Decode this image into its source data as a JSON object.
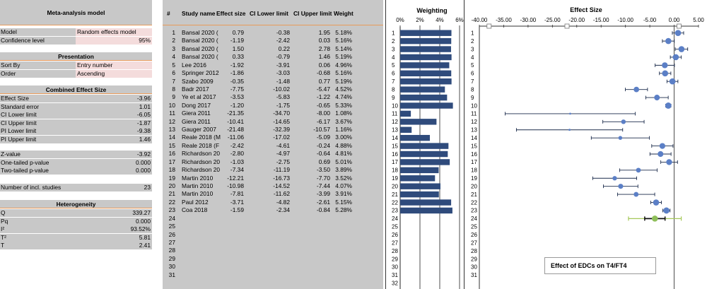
{
  "left_panel": {
    "header": "Meta-analysis model",
    "model": {
      "label": "Model",
      "value": "Random effects model"
    },
    "confidence": {
      "label": "Confidence level",
      "value": "95%"
    },
    "presentation_header": "Presentation",
    "sort_by": {
      "label": "Sort By",
      "value": "Entry number"
    },
    "order": {
      "label": "Order",
      "value": "Ascending"
    },
    "combined_header": "Combined Effect Size",
    "combined": [
      {
        "label": "Effect Size",
        "value": "-3.96"
      },
      {
        "label": "Standard error",
        "value": "1.01"
      },
      {
        "label": "CI Lower limit",
        "value": "-6.05"
      },
      {
        "label": "CI Upper limit",
        "value": "-1.87"
      },
      {
        "label": "PI Lower limit",
        "value": "-9.38"
      },
      {
        "label": "PI Upper limit",
        "value": "1.46"
      }
    ],
    "tests": [
      {
        "label": "Z-value",
        "value": "-3.92"
      },
      {
        "label": "One-tailed p-value",
        "value": "0.000"
      },
      {
        "label": "Two-tailed p-value",
        "value": "0.000"
      }
    ],
    "n_studies": {
      "label": "Number of incl. studies",
      "value": "23"
    },
    "heterogeneity_header": "Heterogeneity",
    "heterogeneity": [
      {
        "label": "Q",
        "value": "339.27"
      },
      {
        "label": "Pq",
        "value": "0.000"
      },
      {
        "label": "I²",
        "value": "93.52%"
      },
      {
        "label": "T²",
        "value": "5.81"
      },
      {
        "label": "T",
        "value": "2.41"
      }
    ]
  },
  "table": {
    "headers": [
      "#",
      "Study name",
      "Effect size",
      "CI Lower limit",
      "CI Upper limit",
      "Weight"
    ],
    "rows": [
      {
        "n": "1",
        "name": "Bansal 2020 (",
        "es": "0.79",
        "lo": "-0.38",
        "hi": "1.95",
        "w": "5.18%"
      },
      {
        "n": "2",
        "name": "Bansal 2020 (",
        "es": "-1.19",
        "lo": "-2.42",
        "hi": "0.03",
        "w": "5.16%"
      },
      {
        "n": "3",
        "name": "Bansal 2020 (",
        "es": "1.50",
        "lo": "0.22",
        "hi": "2.78",
        "w": "5.14%"
      },
      {
        "n": "4",
        "name": "Bansal 2020 (",
        "es": "0.33",
        "lo": "-0.79",
        "hi": "1.46",
        "w": "5.19%"
      },
      {
        "n": "5",
        "name": "Lee 2016",
        "es": "-1.92",
        "lo": "-3.91",
        "hi": "0.06",
        "w": "4.96%"
      },
      {
        "n": "6",
        "name": "Springer 2012",
        "es": "-1.86",
        "lo": "-3.03",
        "hi": "-0.68",
        "w": "5.16%"
      },
      {
        "n": "7",
        "name": "Szabo 2009",
        "es": "-0.35",
        "lo": "-1.48",
        "hi": "0.77",
        "w": "5.19%"
      },
      {
        "n": "8",
        "name": "Badr 2017",
        "es": "-7.75",
        "lo": "-10.02",
        "hi": "-5.47",
        "w": "4.52%"
      },
      {
        "n": "9",
        "name": "Ye et al 2017",
        "es": "-3.53",
        "lo": "-5.83",
        "hi": "-1.22",
        "w": "4.74%"
      },
      {
        "n": "10",
        "name": "Dong 2017",
        "es": "-1.20",
        "lo": "-1.75",
        "hi": "-0.65",
        "w": "5.33%"
      },
      {
        "n": "11",
        "name": "Giera 2011",
        "es": "-21.35",
        "lo": "-34.70",
        "hi": "-8.00",
        "w": "1.08%"
      },
      {
        "n": "12",
        "name": "Giera 2011",
        "es": "-10.41",
        "lo": "-14.65",
        "hi": "-6.17",
        "w": "3.67%"
      },
      {
        "n": "13",
        "name": "Gauger 2007",
        "es": "-21.48",
        "lo": "-32.39",
        "hi": "-10.57",
        "w": "1.16%"
      },
      {
        "n": "14",
        "name": "Reale 2018 (M",
        "es": "-11.06",
        "lo": "-17.02",
        "hi": "-5.09",
        "w": "3.00%"
      },
      {
        "n": "15",
        "name": "Reale 2018 (F",
        "es": "-2.42",
        "lo": "-4.61",
        "hi": "-0.24",
        "w": "4.88%"
      },
      {
        "n": "16",
        "name": "Richardson 20",
        "es": "-2.80",
        "lo": "-4.97",
        "hi": "-0.64",
        "w": "4.81%"
      },
      {
        "n": "17",
        "name": "Richardson 20",
        "es": "-1.03",
        "lo": "-2.75",
        "hi": "0.69",
        "w": "5.01%"
      },
      {
        "n": "18",
        "name": "Richardson 20",
        "es": "-7.34",
        "lo": "-11.19",
        "hi": "-3.50",
        "w": "3.89%"
      },
      {
        "n": "19",
        "name": "Martin 2010",
        "es": "-12.21",
        "lo": "-16.73",
        "hi": "-7.70",
        "w": "3.52%"
      },
      {
        "n": "20",
        "name": "Martin 2010",
        "es": "-10.98",
        "lo": "-14.52",
        "hi": "-7.44",
        "w": "4.07%"
      },
      {
        "n": "21",
        "name": "Martin 2010",
        "es": "-7.81",
        "lo": "-11.62",
        "hi": "-3.99",
        "w": "3.91%"
      },
      {
        "n": "22",
        "name": "Paul 2012",
        "es": "-3.71",
        "lo": "-4.82",
        "hi": "-2.61",
        "w": "5.15%"
      },
      {
        "n": "23",
        "name": "Coa 2018",
        "es": "-1.59",
        "lo": "-2.34",
        "hi": "-0.84",
        "w": "5.28%"
      },
      {
        "n": "24",
        "name": "",
        "es": "",
        "lo": "",
        "hi": "",
        "w": ""
      },
      {
        "n": "25",
        "name": "",
        "es": "",
        "lo": "",
        "hi": "",
        "w": ""
      },
      {
        "n": "26",
        "name": "",
        "es": "",
        "lo": "",
        "hi": "",
        "w": ""
      },
      {
        "n": "27",
        "name": "",
        "es": "",
        "lo": "",
        "hi": "",
        "w": ""
      },
      {
        "n": "28",
        "name": "",
        "es": "",
        "lo": "",
        "hi": "",
        "w": ""
      },
      {
        "n": "29",
        "name": "",
        "es": "",
        "lo": "",
        "hi": "",
        "w": ""
      },
      {
        "n": "30",
        "name": "",
        "es": "",
        "lo": "",
        "hi": "",
        "w": ""
      },
      {
        "n": "31",
        "name": "",
        "es": "",
        "lo": "",
        "hi": "",
        "w": ""
      }
    ]
  },
  "chart_data": [
    {
      "type": "bar",
      "title": "Weighting",
      "orientation": "horizontal",
      "xlim": [
        0,
        6
      ],
      "x_ticks": [
        "0%",
        "2%",
        "4%",
        "6%"
      ],
      "row_labels": [
        "1",
        "2",
        "3",
        "4",
        "5",
        "6",
        "7",
        "8",
        "9",
        "10",
        "11",
        "12",
        "13",
        "14",
        "15",
        "16",
        "17",
        "18",
        "19",
        "20",
        "21",
        "22",
        "23",
        "24",
        "25",
        "26",
        "27",
        "28",
        "29",
        "30",
        "31",
        "32"
      ],
      "values": [
        5.18,
        5.16,
        5.14,
        5.19,
        4.96,
        5.16,
        5.19,
        4.52,
        4.74,
        5.33,
        1.08,
        3.67,
        1.16,
        3.0,
        4.88,
        4.81,
        5.01,
        3.89,
        3.52,
        4.07,
        3.91,
        5.15,
        5.28
      ],
      "bar_color": "#2f4b7c"
    },
    {
      "type": "scatter",
      "subtype": "forest",
      "title": "Effect Size",
      "xlim": [
        -40,
        5
      ],
      "x_ticks": [
        "-40.00",
        "-35.00",
        "-30.00",
        "-25.00",
        "-20.00",
        "-15.00",
        "-10.00",
        "-5.00",
        "0.00",
        "5.00"
      ],
      "row_labels": [
        "1",
        "2",
        "3",
        "4",
        "5",
        "6",
        "7",
        "8",
        "9",
        "10",
        "11",
        "12",
        "13",
        "14",
        "15",
        "16",
        "17",
        "18",
        "19",
        "20",
        "21",
        "22",
        "23",
        "24",
        "25",
        "26",
        "27",
        "28",
        "29",
        "30",
        "31"
      ],
      "effect": [
        0.79,
        -1.19,
        1.5,
        0.33,
        -1.92,
        -1.86,
        -0.35,
        -7.75,
        -3.53,
        -1.2,
        -21.35,
        -10.41,
        -21.48,
        -11.06,
        -2.42,
        -2.8,
        -1.03,
        -7.34,
        -12.21,
        -10.98,
        -7.81,
        -3.71,
        -1.59
      ],
      "lower": [
        -0.38,
        -2.42,
        0.22,
        -0.79,
        -3.91,
        -3.03,
        -1.48,
        -10.02,
        -5.83,
        -1.75,
        -34.7,
        -14.65,
        -32.39,
        -17.02,
        -4.61,
        -4.97,
        -2.75,
        -11.19,
        -16.73,
        -14.52,
        -11.62,
        -4.82,
        -2.34
      ],
      "upper": [
        1.95,
        0.03,
        2.78,
        1.46,
        0.06,
        -0.68,
        0.77,
        -5.47,
        -1.22,
        -0.65,
        -8.0,
        -6.17,
        -10.57,
        -5.09,
        -0.24,
        -0.64,
        0.69,
        -3.5,
        -7.7,
        -7.44,
        -3.99,
        -2.61,
        -0.84
      ],
      "weights": [
        5.18,
        5.16,
        5.14,
        5.19,
        4.96,
        5.16,
        5.19,
        4.52,
        4.74,
        5.33,
        1.08,
        3.67,
        1.16,
        3.0,
        4.88,
        4.81,
        5.01,
        3.89,
        3.52,
        4.07,
        3.91,
        5.15,
        5.28
      ],
      "combined": {
        "row": "24",
        "effect": -3.96,
        "ci": [
          -6.05,
          -1.87
        ],
        "pi": [
          -9.38,
          1.46
        ]
      },
      "point_color": "#5b7fc6",
      "combined_color": "#8fbf5a",
      "pi_color": "#a6c85a",
      "caption": "Effect of EDCs on T4/FT4"
    }
  ]
}
